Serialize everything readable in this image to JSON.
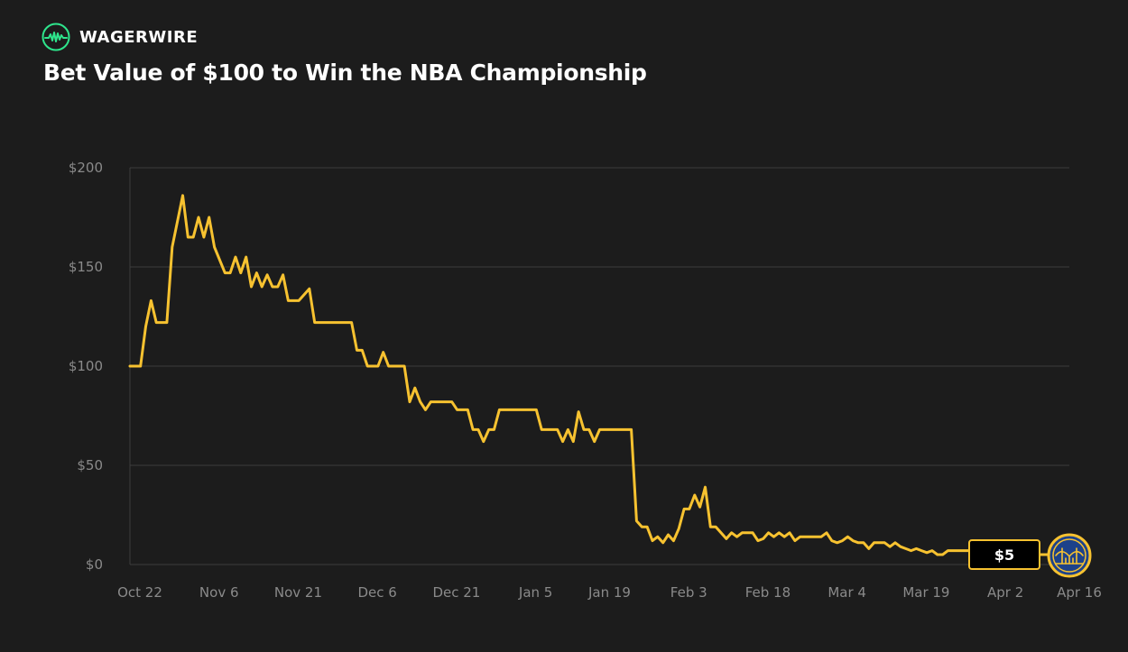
{
  "brand": {
    "name": "WAGERWIRE",
    "logo_icon": "pulse-circle-icon",
    "accent_color": "#2ee58c"
  },
  "header": {
    "title": "Bet Value of $100 to Win the NBA Championship"
  },
  "badge": {
    "value_label": "$5",
    "team_logo_icon": "golden-state-warriors-logo-icon"
  },
  "colors": {
    "background": "#1c1c1c",
    "line": "#f7c230",
    "grid": "#3d3d3d",
    "tick_text": "#8a8a8a",
    "logo_blue": "#1d428a"
  },
  "chart_data": {
    "type": "line",
    "title": "Bet Value of $100 to Win the NBA Championship",
    "xlabel": "",
    "ylabel": "",
    "ylim": [
      0,
      200
    ],
    "y_ticks": [
      0,
      50,
      100,
      150,
      200
    ],
    "y_tick_labels": [
      "$0",
      "$50",
      "$100",
      "$150",
      "$200"
    ],
    "x_tick_labels": [
      "Oct 22",
      "Nov 6",
      "Nov 21",
      "Dec 6",
      "Dec 21",
      "Jan 5",
      "Jan 19",
      "Feb 3",
      "Feb 18",
      "Mar 4",
      "Mar 19",
      "Apr 2",
      "Apr 16"
    ],
    "x_tick_days": [
      0,
      15,
      30,
      45,
      60,
      75,
      89,
      104,
      119,
      134,
      149,
      164,
      178
    ],
    "grid": true,
    "legend": "none",
    "series": [
      {
        "points": [
          [
            0,
            100
          ],
          [
            2,
            100
          ],
          [
            3,
            120
          ],
          [
            4,
            133
          ],
          [
            5,
            122
          ],
          [
            7,
            122
          ],
          [
            8,
            160
          ],
          [
            10,
            186
          ],
          [
            11,
            165
          ],
          [
            12,
            165
          ],
          [
            13,
            175
          ],
          [
            14,
            165
          ],
          [
            15,
            175
          ],
          [
            16,
            160
          ],
          [
            18,
            147
          ],
          [
            19,
            147
          ],
          [
            20,
            155
          ],
          [
            21,
            147
          ],
          [
            22,
            155
          ],
          [
            23,
            140
          ],
          [
            24,
            147
          ],
          [
            25,
            140
          ],
          [
            26,
            146
          ],
          [
            27,
            140
          ],
          [
            28,
            140
          ],
          [
            29,
            146
          ],
          [
            30,
            133
          ],
          [
            32,
            133
          ],
          [
            34,
            139
          ],
          [
            35,
            122
          ],
          [
            37,
            122
          ],
          [
            39,
            122
          ],
          [
            42,
            122
          ],
          [
            43,
            108
          ],
          [
            44,
            108
          ],
          [
            45,
            100
          ],
          [
            46,
            100
          ],
          [
            47,
            100
          ],
          [
            48,
            107
          ],
          [
            49,
            100
          ],
          [
            51,
            100
          ],
          [
            52,
            100
          ],
          [
            53,
            82
          ],
          [
            54,
            89
          ],
          [
            55,
            82
          ],
          [
            56,
            78
          ],
          [
            57,
            82
          ],
          [
            59,
            82
          ],
          [
            61,
            82
          ],
          [
            62,
            78
          ],
          [
            64,
            78
          ],
          [
            65,
            68
          ],
          [
            66,
            68
          ],
          [
            67,
            62
          ],
          [
            68,
            68
          ],
          [
            69,
            68
          ],
          [
            70,
            78
          ],
          [
            72,
            78
          ],
          [
            75,
            78
          ],
          [
            77,
            78
          ],
          [
            78,
            68
          ],
          [
            80,
            68
          ],
          [
            81,
            68
          ],
          [
            82,
            62
          ],
          [
            83,
            68
          ],
          [
            84,
            62
          ],
          [
            85,
            77
          ],
          [
            86,
            68
          ],
          [
            87,
            68
          ],
          [
            88,
            62
          ],
          [
            89,
            68
          ],
          [
            91,
            68
          ],
          [
            94,
            68
          ],
          [
            95,
            68
          ],
          [
            96,
            22
          ],
          [
            97,
            19
          ],
          [
            98,
            19
          ],
          [
            99,
            12
          ],
          [
            100,
            14
          ],
          [
            101,
            11
          ],
          [
            102,
            15
          ],
          [
            103,
            12
          ],
          [
            104,
            18
          ],
          [
            105,
            28
          ],
          [
            106,
            28
          ],
          [
            107,
            35
          ],
          [
            108,
            29
          ],
          [
            109,
            39
          ],
          [
            110,
            19
          ],
          [
            111,
            19
          ],
          [
            112,
            16
          ],
          [
            113,
            13
          ],
          [
            114,
            16
          ],
          [
            115,
            14
          ],
          [
            116,
            16
          ],
          [
            118,
            16
          ],
          [
            119,
            12
          ],
          [
            120,
            13
          ],
          [
            121,
            16
          ],
          [
            122,
            14
          ],
          [
            123,
            16
          ],
          [
            124,
            14
          ],
          [
            125,
            16
          ],
          [
            126,
            12
          ],
          [
            127,
            14
          ],
          [
            130,
            14
          ],
          [
            131,
            14
          ],
          [
            132,
            16
          ],
          [
            133,
            12
          ],
          [
            134,
            11
          ],
          [
            135,
            12
          ],
          [
            136,
            14
          ],
          [
            137,
            12
          ],
          [
            138,
            11
          ],
          [
            139,
            11
          ],
          [
            140,
            8
          ],
          [
            141,
            11
          ],
          [
            143,
            11
          ],
          [
            144,
            9
          ],
          [
            145,
            11
          ],
          [
            146,
            9
          ],
          [
            147,
            8
          ],
          [
            148,
            7
          ],
          [
            149,
            8
          ],
          [
            150,
            7
          ],
          [
            151,
            6
          ],
          [
            152,
            7
          ],
          [
            153,
            5
          ],
          [
            154,
            5
          ],
          [
            155,
            7
          ],
          [
            157,
            7
          ],
          [
            160,
            7
          ],
          [
            161,
            6
          ],
          [
            162,
            7
          ],
          [
            163,
            5
          ],
          [
            164,
            6
          ],
          [
            165,
            6
          ],
          [
            167,
            6
          ],
          [
            170,
            5
          ],
          [
            173,
            5
          ],
          [
            175,
            5
          ],
          [
            178,
            5
          ]
        ]
      }
    ]
  }
}
